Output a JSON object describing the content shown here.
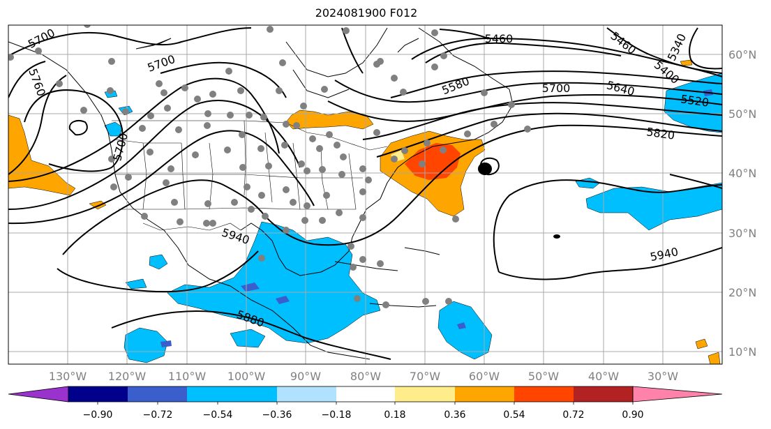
{
  "title": "2024081900 F012",
  "lon_labels": [
    "130°W",
    "120°W",
    "110°W",
    "100°W",
    "90°W",
    "80°W",
    "70°W",
    "60°W",
    "50°W",
    "40°W",
    "30°W"
  ],
  "lat_labels": [
    "60°N",
    "50°N",
    "40°N",
    "30°N",
    "20°N",
    "10°N"
  ],
  "contour_labels": [
    "5700",
    "5700",
    "5760",
    "5700",
    "5460",
    "5460",
    "5340",
    "5400",
    "5580",
    "5700",
    "5640",
    "5520",
    "5820",
    "5940",
    "5940",
    "5880"
  ],
  "colorbar": {
    "ticks": [
      "−0.90",
      "−0.72",
      "−0.54",
      "−0.36",
      "−0.18",
      "0.18",
      "0.36",
      "0.54",
      "0.72",
      "0.90"
    ],
    "colors": [
      "#9a32cd",
      "#00008b",
      "#3a5fcd",
      "#00bfff",
      "#b0e2ff",
      "#ffffff",
      "#ffec8b",
      "#ffa500",
      "#ff4500",
      "#b22222",
      "#ff82ab"
    ]
  },
  "colors": {
    "positive": "#ffa500",
    "strong_positive": "#ff4500",
    "negative": "#00bfff",
    "strong_negative": "#3a5fcd"
  }
}
